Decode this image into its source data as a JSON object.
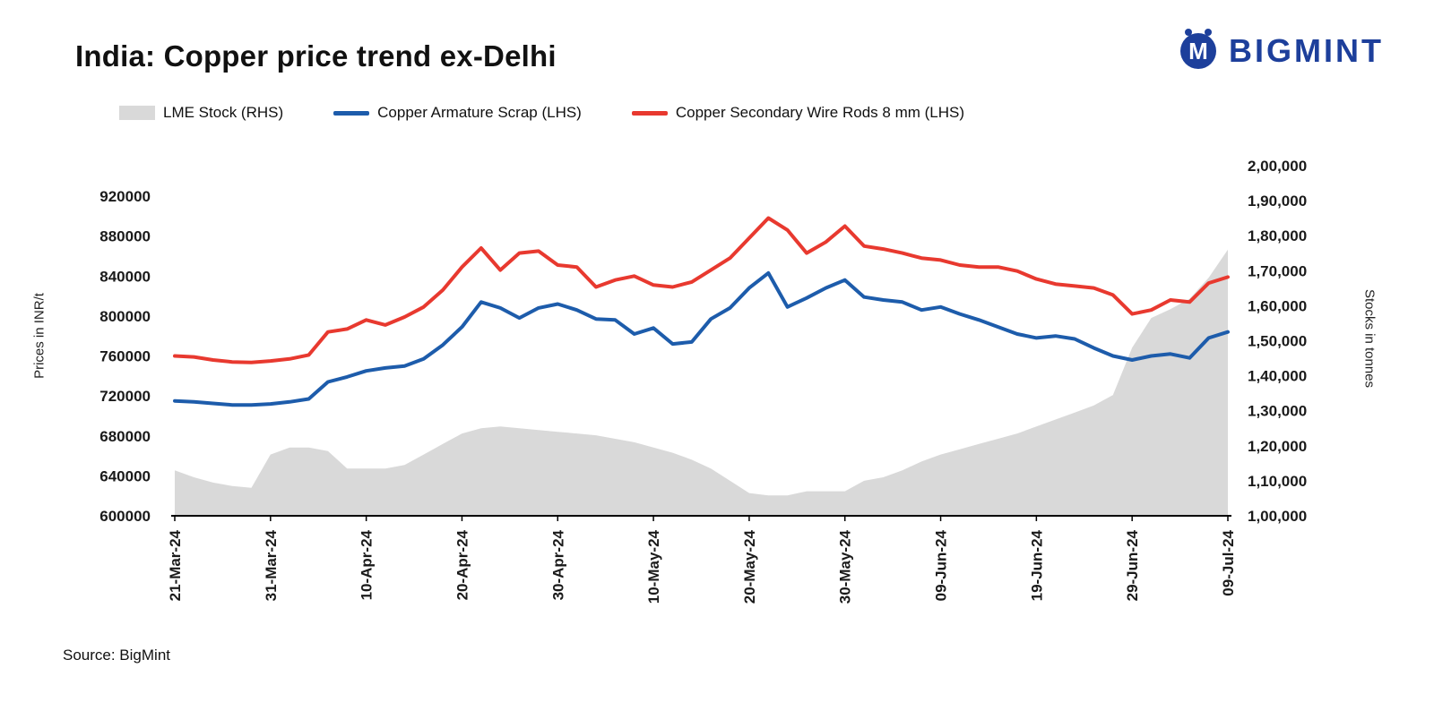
{
  "header": {
    "title": "India: Copper price trend ex-Delhi",
    "brand": "BIGMINT"
  },
  "legend": [
    {
      "label": "LME Stock (RHS)",
      "type": "area",
      "color": "#d9d9d9"
    },
    {
      "label": "Copper Armature Scrap (LHS)",
      "type": "line",
      "color": "#1d5cab"
    },
    {
      "label": "Copper Secondary Wire Rods 8 mm (LHS)",
      "type": "line",
      "color": "#e8392f"
    }
  ],
  "axes": {
    "left_title": "Prices in INR/t",
    "right_title": "Stocks in tonnes",
    "left_ticks": [
      "920000",
      "880000",
      "840000",
      "800000",
      "760000",
      "720000",
      "680000",
      "640000",
      "600000"
    ],
    "right_ticks": [
      "2,00,000",
      "1,90,000",
      "1,80,000",
      "1,70,000",
      "1,60,000",
      "1,50,000",
      "1,40,000",
      "1,30,000",
      "1,20,000",
      "1,10,000",
      "1,00,000"
    ],
    "x_ticks": [
      "21-Mar-24",
      "31-Mar-24",
      "10-Apr-24",
      "20-Apr-24",
      "30-Apr-24",
      "10-May-24",
      "20-May-24",
      "30-May-24",
      "09-Jun-24",
      "19-Jun-24",
      "29-Jun-24",
      "09-Jul-24"
    ]
  },
  "source": "Source: BigMint",
  "chart_data": {
    "type": "line",
    "title": "India: Copper price trend ex-Delhi",
    "x_tick_every": 5,
    "left_axis": {
      "label": "Prices in INR/t",
      "min": 600000,
      "max": 920000,
      "tick_step": 40000
    },
    "right_axis": {
      "label": "Stocks in tonnes",
      "min": 100000,
      "max": 200000,
      "tick_step": 10000
    },
    "x": [
      "21-Mar-24",
      "23-Mar-24",
      "25-Mar-24",
      "27-Mar-24",
      "29-Mar-24",
      "31-Mar-24",
      "02-Apr-24",
      "04-Apr-24",
      "06-Apr-24",
      "08-Apr-24",
      "10-Apr-24",
      "12-Apr-24",
      "14-Apr-24",
      "16-Apr-24",
      "18-Apr-24",
      "20-Apr-24",
      "22-Apr-24",
      "24-Apr-24",
      "26-Apr-24",
      "28-Apr-24",
      "30-Apr-24",
      "02-May-24",
      "04-May-24",
      "06-May-24",
      "08-May-24",
      "10-May-24",
      "12-May-24",
      "14-May-24",
      "16-May-24",
      "18-May-24",
      "20-May-24",
      "22-May-24",
      "24-May-24",
      "26-May-24",
      "28-May-24",
      "30-May-24",
      "01-Jun-24",
      "03-Jun-24",
      "05-Jun-24",
      "07-Jun-24",
      "09-Jun-24",
      "11-Jun-24",
      "13-Jun-24",
      "15-Jun-24",
      "17-Jun-24",
      "19-Jun-24",
      "21-Jun-24",
      "23-Jun-24",
      "25-Jun-24",
      "27-Jun-24",
      "29-Jun-24",
      "01-Jul-24",
      "03-Jul-24",
      "05-Jul-24",
      "07-Jul-24",
      "09-Jul-24"
    ],
    "series": [
      {
        "name": "LME Stock (RHS)",
        "type": "area",
        "axis": "right",
        "color": "#d9d9d9",
        "values": [
          113000,
          111000,
          109500,
          108500,
          108000,
          117500,
          119500,
          119500,
          118500,
          113500,
          113500,
          113500,
          114500,
          117500,
          120500,
          123500,
          125000,
          125500,
          125000,
          124500,
          124000,
          123500,
          123000,
          122000,
          121000,
          119500,
          118000,
          116000,
          113500,
          110000,
          106500,
          105800,
          105800,
          107000,
          107000,
          107000,
          110000,
          111000,
          113000,
          115500,
          117500,
          119000,
          120500,
          122000,
          123500,
          125500,
          127500,
          129500,
          131500,
          134500,
          148000,
          156500,
          159000,
          162000,
          168000,
          176000
        ]
      },
      {
        "name": "Copper Armature Scrap (LHS)",
        "type": "line",
        "axis": "left",
        "color": "#1d5cab",
        "values": [
          715000,
          714000,
          712500,
          711000,
          711000,
          712000,
          714000,
          717000,
          734000,
          739000,
          745000,
          748000,
          750000,
          757000,
          771000,
          789000,
          814000,
          808000,
          798000,
          808000,
          812000,
          806000,
          797000,
          796000,
          782000,
          788000,
          772000,
          774000,
          797000,
          808000,
          828000,
          843000,
          809000,
          818000,
          828000,
          836000,
          819000,
          816000,
          814000,
          806000,
          809000,
          802000,
          796000,
          789000,
          782000,
          778000,
          780000,
          777000,
          768000,
          760000,
          756000,
          760000,
          762000,
          758000,
          778000,
          784000
        ]
      },
      {
        "name": "Copper Secondary Wire Rods 8 mm (LHS)",
        "type": "line",
        "axis": "left",
        "color": "#e8392f",
        "values": [
          760000,
          759000,
          756000,
          754000,
          753500,
          755000,
          757000,
          761000,
          784000,
          787000,
          796000,
          791000,
          799000,
          809000,
          826000,
          849000,
          868000,
          846000,
          863000,
          865000,
          851000,
          849000,
          829000,
          836000,
          840000,
          831000,
          829000,
          834000,
          846000,
          858000,
          878000,
          898000,
          886000,
          863000,
          874000,
          890000,
          870000,
          867000,
          863000,
          858000,
          856000,
          851000,
          849000,
          849000,
          845000,
          837000,
          832000,
          830000,
          828000,
          821000,
          802000,
          806000,
          816000,
          814000,
          833000,
          839000
        ]
      }
    ]
  }
}
